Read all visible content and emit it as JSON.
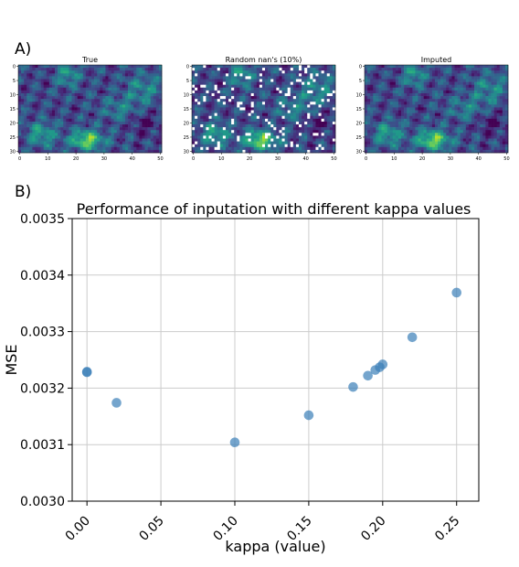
{
  "panel_labels": {
    "a": "A)",
    "b": "B)"
  },
  "heatmaps": [
    {
      "title": "True",
      "nan_overlay": false
    },
    {
      "title": "Random nan's (10%)",
      "nan_overlay": true
    },
    {
      "title": "Imputed",
      "nan_overlay": false
    }
  ],
  "heatmap_axes": {
    "x_ticks": [
      "0",
      "10",
      "20",
      "30",
      "40",
      "50"
    ],
    "y_ticks": [
      "0",
      "5",
      "10",
      "15",
      "20",
      "25",
      "30"
    ],
    "x_range": [
      0,
      51
    ],
    "y_range": [
      0,
      31
    ]
  },
  "colors": {
    "point": "#3b7fb8",
    "grid": "#cccccc",
    "axis": "#000000",
    "nan": "#ffffff",
    "colormap": "viridis"
  },
  "chart_data": [
    {
      "type": "heatmap",
      "title": "True",
      "x_range": [
        0,
        51
      ],
      "y_range": [
        0,
        31
      ],
      "colormap": "viridis"
    },
    {
      "type": "heatmap",
      "title": "Random nan's (10%)",
      "x_range": [
        0,
        51
      ],
      "y_range": [
        0,
        31
      ],
      "colormap": "viridis",
      "nan_fraction": 0.1
    },
    {
      "type": "heatmap",
      "title": "Imputed",
      "x_range": [
        0,
        51
      ],
      "y_range": [
        0,
        31
      ],
      "colormap": "viridis"
    },
    {
      "type": "scatter",
      "title": "Performance of inputation with different kappa values",
      "xlabel": "kappa (value)",
      "ylabel": "MSE",
      "xlim": [
        -0.01,
        0.265
      ],
      "ylim": [
        0.003,
        0.0035
      ],
      "x_ticks": [
        "0.00",
        "0.05",
        "0.10",
        "0.15",
        "0.20",
        "0.25"
      ],
      "y_ticks": [
        "0.0030",
        "0.0031",
        "0.0032",
        "0.0033",
        "0.0034",
        "0.0035"
      ],
      "grid": true,
      "points": [
        {
          "x": 0.0,
          "y": 0.003229
        },
        {
          "x": 0.0,
          "y": 0.003228
        },
        {
          "x": 0.02,
          "y": 0.003174
        },
        {
          "x": 0.1,
          "y": 0.003104
        },
        {
          "x": 0.15,
          "y": 0.003152
        },
        {
          "x": 0.18,
          "y": 0.003202
        },
        {
          "x": 0.19,
          "y": 0.003222
        },
        {
          "x": 0.195,
          "y": 0.003232
        },
        {
          "x": 0.198,
          "y": 0.003237
        },
        {
          "x": 0.2,
          "y": 0.003242
        },
        {
          "x": 0.22,
          "y": 0.00329
        },
        {
          "x": 0.25,
          "y": 0.003369
        }
      ]
    }
  ]
}
